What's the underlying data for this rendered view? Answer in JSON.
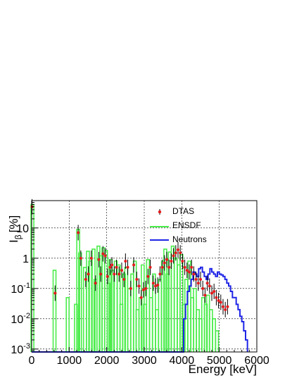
{
  "chart_data": {
    "type": "line",
    "title": "",
    "xlabel": "Energy [keV]",
    "ylabel": "I",
    "ylabel_sub": "β",
    "ylabel_unit": "[%]",
    "xlim": [
      0,
      6000
    ],
    "ylim": [
      0.0008,
      80
    ],
    "yscale": "log",
    "grid": true,
    "legend_position": "top-right",
    "x_ticks": [
      0,
      1000,
      2000,
      3000,
      4000,
      5000,
      6000
    ],
    "x_tick_labels": [
      "0",
      "1000",
      "2000",
      "3000",
      "4000",
      "5000",
      "6000"
    ],
    "y_ticks": [
      0.001,
      0.01,
      0.1,
      1,
      10
    ],
    "y_tick_labels": [
      {
        "base": "10",
        "exp": "-3"
      },
      {
        "base": "10",
        "exp": "-2"
      },
      {
        "base": "10",
        "exp": "-1"
      },
      {
        "base": "1",
        "exp": ""
      },
      {
        "base": "10",
        "exp": ""
      }
    ],
    "series": [
      {
        "name": "DTAS",
        "style": "points-with-errors",
        "color": "#e41a1c",
        "points": [
          [
            10,
            50
          ],
          [
            625,
            0.07
          ],
          [
            1240,
            7.0
          ],
          [
            1310,
            1.0
          ],
          [
            1440,
            0.2
          ],
          [
            1510,
            0.3
          ],
          [
            1590,
            1.0
          ],
          [
            1700,
            0.15
          ],
          [
            1790,
            0.9
          ],
          [
            1840,
            0.3
          ],
          [
            1900,
            1.4
          ],
          [
            1960,
            1.2
          ],
          [
            2020,
            0.25
          ],
          [
            2090,
            0.5
          ],
          [
            2140,
            0.6
          ],
          [
            2200,
            0.3
          ],
          [
            2260,
            0.5
          ],
          [
            2330,
            0.3
          ],
          [
            2400,
            0.4
          ],
          [
            2460,
            0.2
          ],
          [
            2500,
            0.8
          ],
          [
            2560,
            0.5
          ],
          [
            2640,
            0.1
          ],
          [
            2720,
            0.6
          ],
          [
            2800,
            0.2
          ],
          [
            2860,
            0.12
          ],
          [
            2920,
            0.05
          ],
          [
            2980,
            0.09
          ],
          [
            3040,
            0.1
          ],
          [
            3100,
            0.25
          ],
          [
            3160,
            0.5
          ],
          [
            3240,
            0.15
          ],
          [
            3300,
            0.12
          ],
          [
            3360,
            0.13
          ],
          [
            3420,
            0.3
          ],
          [
            3480,
            0.5
          ],
          [
            3540,
            0.7
          ],
          [
            3600,
            0.9
          ],
          [
            3660,
            0.5
          ],
          [
            3720,
            0.8
          ],
          [
            3780,
            1.2
          ],
          [
            3840,
            1.5
          ],
          [
            3900,
            1.9
          ],
          [
            3960,
            1.5
          ],
          [
            4020,
            0.8
          ],
          [
            4080,
            0.5
          ],
          [
            4140,
            0.4
          ],
          [
            4200,
            0.35
          ],
          [
            4260,
            0.5
          ],
          [
            4320,
            0.3
          ],
          [
            4380,
            0.2
          ],
          [
            4440,
            0.15
          ],
          [
            4500,
            0.2
          ],
          [
            4560,
            0.1
          ],
          [
            4620,
            0.06
          ],
          [
            4680,
            0.15
          ],
          [
            4740,
            0.12
          ],
          [
            4800,
            0.07
          ],
          [
            4860,
            0.08
          ],
          [
            4920,
            0.05
          ],
          [
            4980,
            0.04
          ],
          [
            5040,
            0.035
          ],
          [
            5100,
            0.025
          ],
          [
            5160,
            0.02
          ],
          [
            5220,
            0.025
          ]
        ]
      },
      {
        "name": "ENSDF",
        "style": "spikes",
        "color": "#4ced4c",
        "baseline": 0.0008,
        "points": [
          [
            20,
            60
          ],
          [
            610,
            0.4
          ],
          [
            960,
            0.05
          ],
          [
            1180,
            0.03
          ],
          [
            1240,
            9.0
          ],
          [
            1290,
            1.5
          ],
          [
            1420,
            0.5
          ],
          [
            1500,
            1.7
          ],
          [
            1560,
            0.8
          ],
          [
            1650,
            2.0
          ],
          [
            1700,
            0.2
          ],
          [
            1780,
            2.5
          ],
          [
            1840,
            1.2
          ],
          [
            1910,
            2.2
          ],
          [
            1980,
            1.8
          ],
          [
            2050,
            0.15
          ],
          [
            2100,
            0.9
          ],
          [
            2150,
            0.4
          ],
          [
            2240,
            0.8
          ],
          [
            2320,
            0.6
          ],
          [
            2390,
            0.03
          ],
          [
            2460,
            0.3
          ],
          [
            2520,
            0.5
          ],
          [
            2600,
            0.1
          ],
          [
            2680,
            0.3
          ],
          [
            2750,
            0.8
          ],
          [
            2820,
            0.02
          ],
          [
            2900,
            0.05
          ],
          [
            2960,
            0.6
          ],
          [
            3020,
            0.03
          ],
          [
            3100,
            0.9
          ],
          [
            3180,
            0.05
          ],
          [
            3260,
            0.3
          ],
          [
            3340,
            0.02
          ],
          [
            3420,
            0.2
          ],
          [
            3500,
            0.8
          ],
          [
            3560,
            2.0
          ],
          [
            3620,
            0.3
          ],
          [
            3680,
            1.6
          ],
          [
            3760,
            2.5
          ],
          [
            3840,
            1.0
          ],
          [
            3920,
            0.6
          ],
          [
            3990,
            1.3
          ],
          [
            4050,
            0.03
          ],
          [
            4120,
            0.2
          ],
          [
            4200,
            0.8
          ],
          [
            4280,
            0.05
          ],
          [
            4350,
            0.1
          ],
          [
            4430,
            0.02
          ],
          [
            4500,
            0.01
          ],
          [
            4570,
            0.05
          ],
          [
            4640,
            0.03
          ],
          [
            4700,
            0.06
          ],
          [
            4780,
            0.02
          ],
          [
            4860,
            0.01
          ],
          [
            4940,
            0.004
          ]
        ]
      },
      {
        "name": "Neutrons",
        "style": "step",
        "color": "#1f25e6",
        "points": [
          [
            0,
            0.0008
          ],
          [
            4000,
            0.0008
          ],
          [
            4050,
            0.01
          ],
          [
            4100,
            0.03
          ],
          [
            4150,
            0.08
          ],
          [
            4200,
            0.12
          ],
          [
            4250,
            0.2
          ],
          [
            4300,
            0.35
          ],
          [
            4350,
            0.3
          ],
          [
            4400,
            0.25
          ],
          [
            4450,
            0.45
          ],
          [
            4500,
            0.5
          ],
          [
            4550,
            0.35
          ],
          [
            4600,
            0.25
          ],
          [
            4650,
            0.2
          ],
          [
            4700,
            0.3
          ],
          [
            4750,
            0.45
          ],
          [
            4800,
            0.35
          ],
          [
            4850,
            0.3
          ],
          [
            4900,
            0.25
          ],
          [
            4950,
            0.35
          ],
          [
            5000,
            0.3
          ],
          [
            5050,
            0.28
          ],
          [
            5100,
            0.25
          ],
          [
            5150,
            0.2
          ],
          [
            5200,
            0.15
          ],
          [
            5250,
            0.12
          ],
          [
            5300,
            0.08
          ],
          [
            5350,
            0.05
          ],
          [
            5400,
            0.05
          ],
          [
            5450,
            0.03
          ],
          [
            5500,
            0.02
          ],
          [
            5550,
            0.012
          ],
          [
            5600,
            0.008
          ],
          [
            5650,
            0.004
          ],
          [
            5700,
            0.002
          ],
          [
            5750,
            0.0008
          ]
        ]
      }
    ]
  }
}
